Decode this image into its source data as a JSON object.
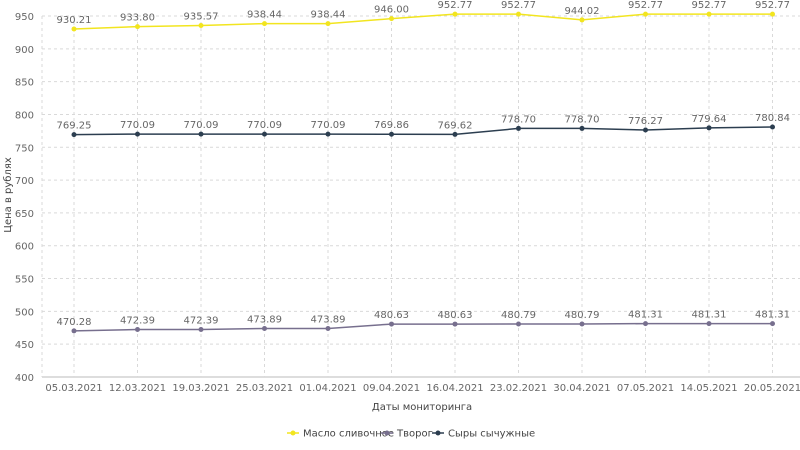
{
  "chart_data": {
    "type": "line",
    "title": "",
    "xlabel": "Даты мониторинга",
    "ylabel": "Цена в рублях",
    "ylim": [
      400,
      950
    ],
    "yticks": [
      400,
      450,
      500,
      550,
      600,
      650,
      700,
      750,
      800,
      850,
      900,
      950
    ],
    "grid": true,
    "legend_position": "bottom",
    "categories": [
      "05.03.2021",
      "12.03.2021",
      "19.03.2021",
      "25.03.2021",
      "01.04.2021",
      "09.04.2021",
      "16.04.2021",
      "23.02.2021",
      "30.04.2021",
      "07.05.2021",
      "14.05.2021",
      "20.05.2021"
    ],
    "series": [
      {
        "name": "Масло сливочное",
        "color": "#f2e51f",
        "values": [
          930.21,
          933.8,
          935.57,
          938.44,
          938.44,
          946.0,
          952.77,
          952.77,
          944.02,
          952.77,
          952.77,
          952.77
        ],
        "labels": [
          "930.21",
          "933.80",
          "935.57",
          "938.44",
          "938.44",
          "946.00",
          "952.77",
          "952.77",
          "944.02",
          "952.77",
          "952.77",
          "952.77"
        ]
      },
      {
        "name": "Творог",
        "color": "#776f8e",
        "values": [
          470.28,
          472.39,
          472.39,
          473.89,
          473.89,
          480.63,
          480.63,
          480.79,
          480.79,
          481.31,
          481.31,
          481.31
        ],
        "labels": [
          "470.28",
          "472.39",
          "472.39",
          "473.89",
          "473.89",
          "480.63",
          "480.63",
          "480.79",
          "480.79",
          "481.31",
          "481.31",
          "481.31"
        ]
      },
      {
        "name": "Сыры сычужные",
        "color": "#2c3e50",
        "values": [
          769.25,
          770.09,
          770.09,
          770.09,
          770.09,
          769.86,
          769.62,
          778.7,
          778.7,
          776.27,
          779.64,
          780.84
        ],
        "labels": [
          "769.25",
          "770.09",
          "770.09",
          "770.09",
          "770.09",
          "769.86",
          "769.62",
          "778.70",
          "778.70",
          "776.27",
          "779.64",
          "780.84"
        ]
      }
    ]
  }
}
